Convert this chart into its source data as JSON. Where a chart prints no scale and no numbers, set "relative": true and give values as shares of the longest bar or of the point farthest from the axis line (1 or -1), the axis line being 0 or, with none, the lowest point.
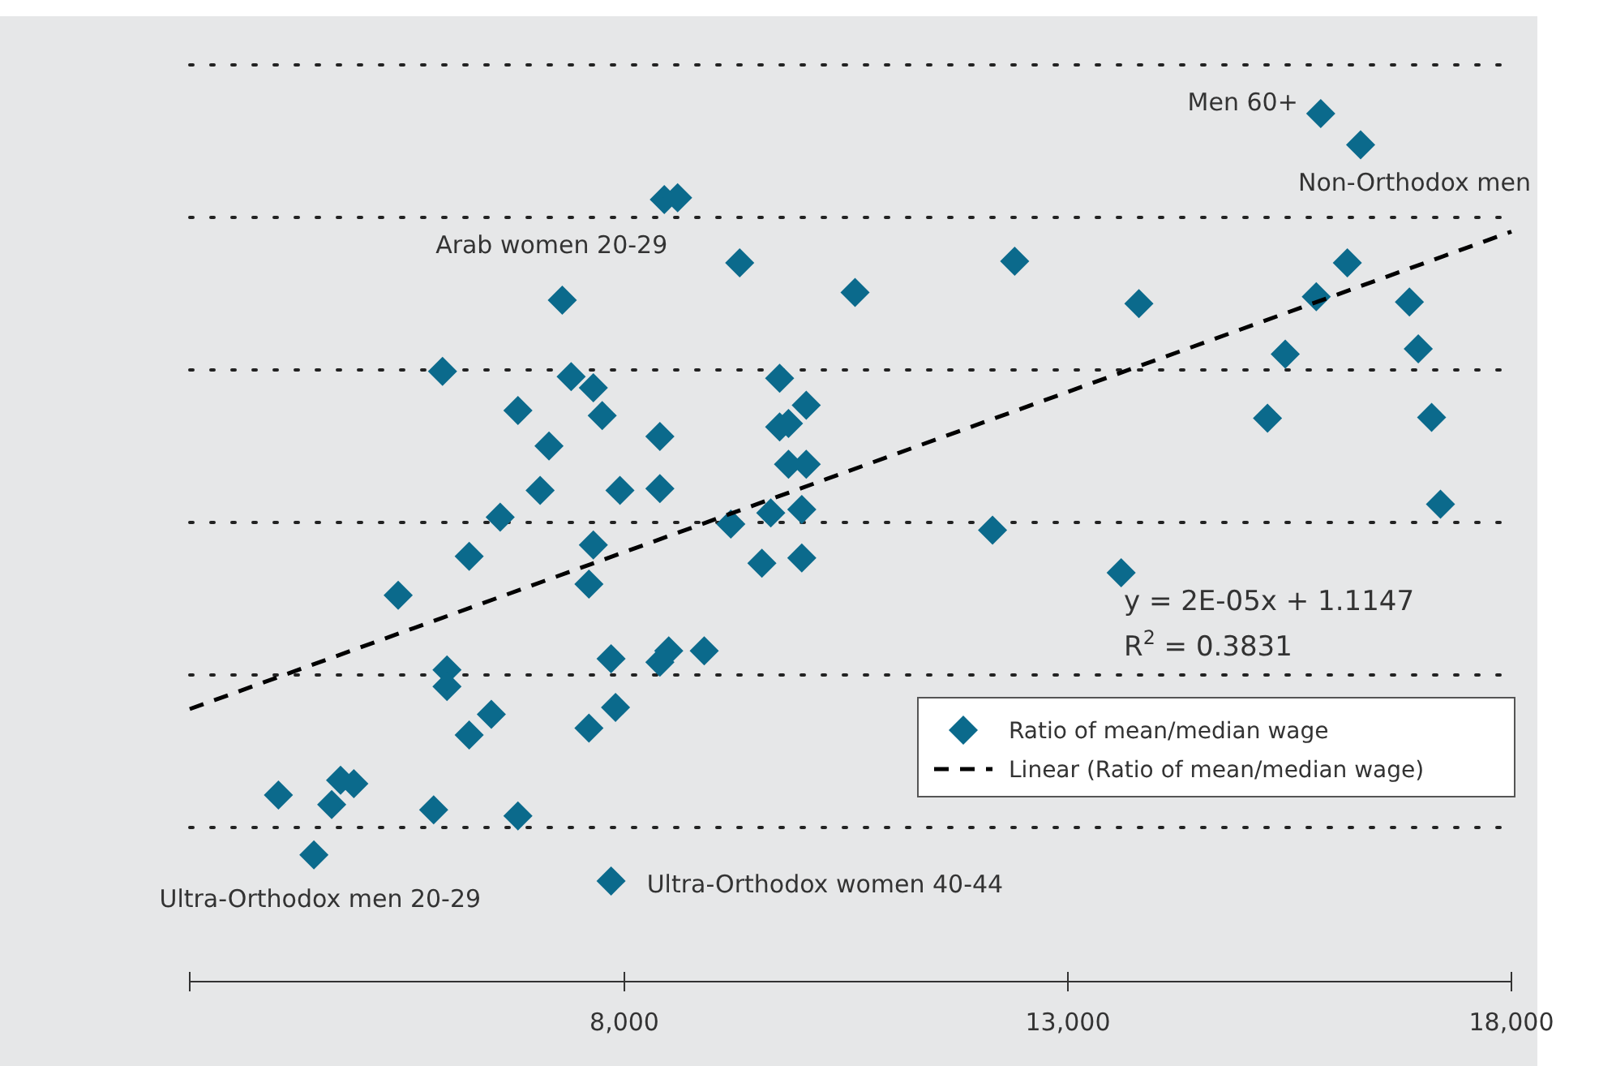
{
  "chart_data": {
    "type": "scatter",
    "relative": true,
    "xlim": [
      3100,
      18000
    ],
    "xticks": [
      {
        "value": 3100,
        "label": null
      },
      {
        "value": 8000,
        "label": "8,000"
      },
      {
        "value": 13000,
        "label": "13,000"
      },
      {
        "value": 18000,
        "label": "18,000"
      }
    ],
    "grid": "y",
    "legend": "bottom right",
    "marker": "diamond",
    "series": [
      {
        "name": "Ratio of mean/median wage",
        "color": "#0b6a8c",
        "x": [
          8450,
          8600,
          9300,
          10600,
          7300,
          5950,
          7400,
          7650,
          9750,
          6800,
          7750,
          10050,
          8400,
          9750,
          9850,
          7150,
          7050,
          7950,
          8400,
          9850,
          10050,
          6600,
          9200,
          9650,
          10000,
          6250,
          7650,
          9550,
          10000,
          5450,
          7600,
          6000,
          6000,
          7850,
          8500,
          8400,
          8900,
          6500,
          6250,
          7900,
          7600,
          4100,
          4800,
          4950,
          4700,
          5850,
          6800,
          4500,
          7850,
          15850,
          16300,
          12400,
          16150,
          13800,
          15800,
          16850,
          15450,
          16950,
          15250,
          17100,
          17200,
          12150,
          13600
        ],
        "values": [
          0.901,
          0.903,
          0.828,
          0.794,
          0.785,
          0.703,
          0.697,
          0.684,
          0.695,
          0.658,
          0.652,
          0.664,
          0.628,
          0.639,
          0.643,
          0.617,
          0.566,
          0.566,
          0.568,
          0.596,
          0.596,
          0.535,
          0.527,
          0.54,
          0.544,
          0.49,
          0.503,
          0.482,
          0.488,
          0.445,
          0.458,
          0.359,
          0.34,
          0.372,
          0.381,
          0.368,
          0.381,
          0.308,
          0.284,
          0.316,
          0.292,
          0.215,
          0.232,
          0.228,
          0.204,
          0.198,
          0.191,
          0.146,
          0.116,
          1.0,
          0.964,
          0.83,
          0.828,
          0.781,
          0.789,
          0.783,
          0.723,
          0.729,
          0.649,
          0.65,
          0.55,
          0.52,
          0.471
        ]
      },
      {
        "name": "Linear (Ratio of mean/median wage)",
        "type": "line",
        "color": "#000000",
        "line_style": "dashed",
        "marker": "none",
        "x": [
          3100,
          18000
        ],
        "values": [
          0.314,
          0.864
        ]
      }
    ],
    "annotations": [
      {
        "text": "Men 60+",
        "x": 15850,
        "y": 1.0
      },
      {
        "text": "Non-Orthodox men",
        "x": 16300,
        "y": 0.964
      },
      {
        "text": "Arab women 20-29",
        "x": 8450,
        "y": 0.901
      },
      {
        "text": "Ultra-Orthodox men 20-29",
        "x": 4500,
        "y": 0.146
      },
      {
        "text": "Ultra-Orthodox women 40-44",
        "x": 7850,
        "y": 0.116
      },
      "y = 2E-05x + 1.1147",
      "R$^{2}$ = 0.3831"
    ]
  }
}
